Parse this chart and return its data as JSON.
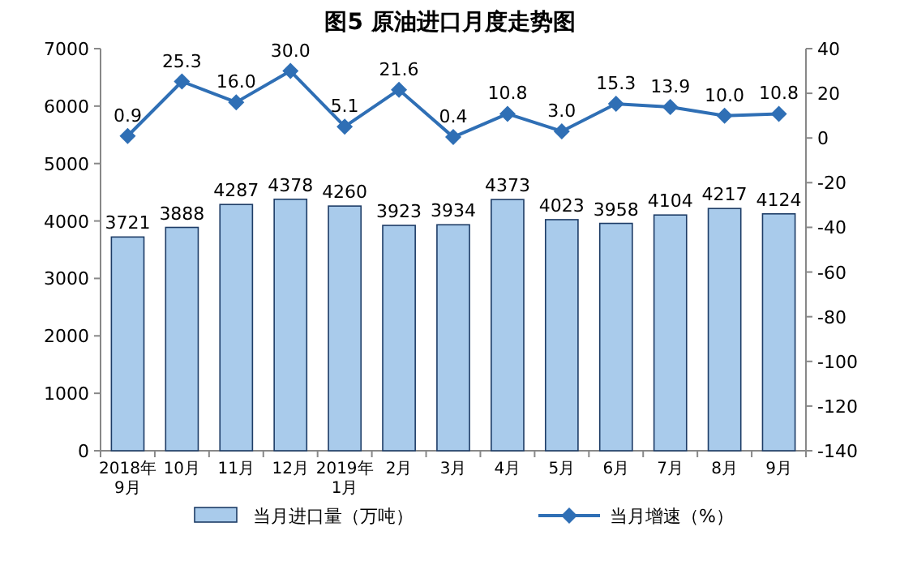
{
  "chart_data": {
    "type": "bar",
    "title": "图5  原油进口月度走势图",
    "categories": [
      "2018年\n9月",
      "10月",
      "11月",
      "12月",
      "2019年\n1月",
      "2月",
      "3月",
      "4月",
      "5月",
      "6月",
      "7月",
      "8月",
      "9月"
    ],
    "series": [
      {
        "name": "当月进口量（万吨）",
        "color": "#a9cbeb",
        "values": [
          3721,
          3888,
          4287,
          4378,
          4260,
          3923,
          3934,
          4373,
          4023,
          3958,
          4104,
          4217,
          4124
        ],
        "value_labels": [
          "3721",
          "3888",
          "4287",
          "4378",
          "4260",
          "3923",
          "3934",
          "4373",
          "4023",
          "3958",
          "4104",
          "4217",
          "4124"
        ]
      },
      {
        "name": "当月增速（%）",
        "type": "line",
        "axis": "y2",
        "color": "#2f6fb5",
        "marker": "diamond",
        "line_style": "solid",
        "values": [
          0.9,
          25.3,
          16.0,
          30.0,
          5.1,
          21.6,
          0.4,
          10.8,
          3.0,
          15.3,
          13.9,
          10.0,
          10.8
        ],
        "value_labels": [
          "0.9",
          "25.3",
          "16.0",
          "30.0",
          "5.1",
          "21.6",
          "0.4",
          "10.8",
          "3.0",
          "15.3",
          "13.9",
          "10.0",
          "10.8"
        ]
      }
    ],
    "ylim": [
      0,
      7000
    ],
    "yticks": [
      0,
      1000,
      2000,
      3000,
      4000,
      5000,
      6000,
      7000
    ],
    "y2lim": [
      -140,
      40
    ],
    "y2ticks": [
      -140,
      -120,
      -100,
      -80,
      -60,
      -40,
      -20,
      0,
      20,
      40
    ],
    "grid": false,
    "legend": "bottom"
  }
}
